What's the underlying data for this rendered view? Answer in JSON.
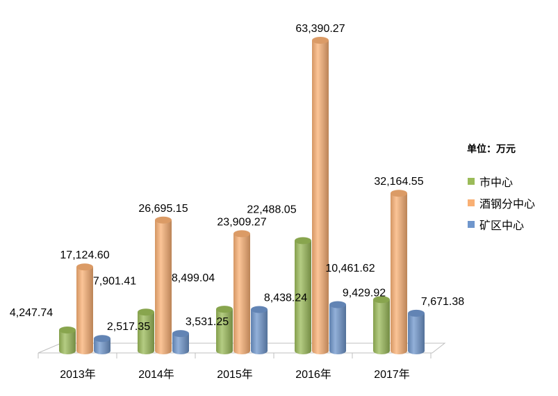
{
  "chart_data": {
    "type": "bar",
    "style": "3d-cylinder",
    "categories": [
      "2013年",
      "2014年",
      "2015年",
      "2016年",
      "2017年"
    ],
    "series": [
      {
        "name": "市中心",
        "color": "#9BBB59",
        "values": [
          4247.74,
          7901.41,
          8499.04,
          22488.05,
          10461.62
        ],
        "labels": [
          "4,247.74",
          "7,901.41",
          "8,499.04",
          "22,488.05",
          "10,461.62"
        ]
      },
      {
        "name": "酒钢分中心",
        "color": "#F9B074",
        "values": [
          17124.6,
          26695.15,
          23909.27,
          63390.27,
          32164.55
        ],
        "labels": [
          "17,124.60",
          "26,695.15",
          "23,909.27",
          "63,390.27",
          "32,164.55"
        ]
      },
      {
        "name": "矿区中心",
        "color": "#6F96CC",
        "values": [
          2517.35,
          3531.25,
          8438.24,
          9429.92,
          7671.38
        ],
        "labels": [
          "2,517.35",
          "3,531.25",
          "8,438.24",
          "9,429.92",
          "7,671.38"
        ]
      }
    ],
    "unit_label": "单位：万元",
    "legend_position": "right",
    "grid": false,
    "ylim": [
      0,
      63390.27
    ]
  }
}
